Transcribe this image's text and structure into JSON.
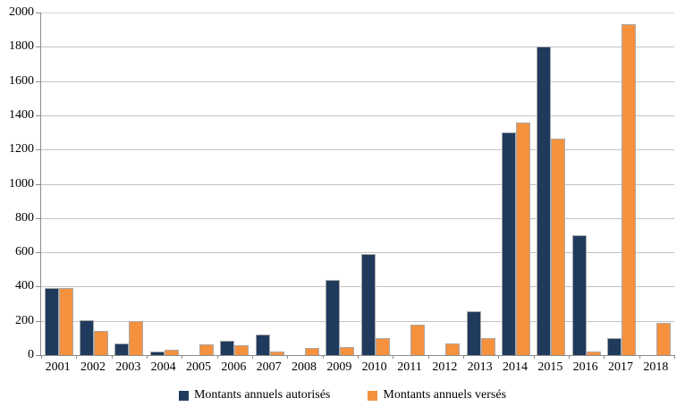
{
  "chart_data": {
    "type": "bar",
    "title": "",
    "xlabel": "",
    "ylabel": "",
    "categories": [
      "2001",
      "2002",
      "2003",
      "2004",
      "2005",
      "2006",
      "2007",
      "2008",
      "2009",
      "2010",
      "2011",
      "2012",
      "2013",
      "2014",
      "2015",
      "2016",
      "2017",
      "2018"
    ],
    "series": [
      {
        "name": "Montants annuels autorisés",
        "color": "#1f3a5c",
        "values": [
          390,
          205,
          70,
          20,
          0,
          85,
          120,
          0,
          440,
          590,
          0,
          0,
          255,
          1300,
          1800,
          700,
          100,
          0
        ]
      },
      {
        "name": "Montants annuels versés",
        "color": "#f6913e",
        "values": [
          390,
          140,
          200,
          30,
          65,
          60,
          20,
          40,
          45,
          100,
          180,
          70,
          100,
          1360,
          1265,
          20,
          1930,
          190
        ]
      }
    ],
    "ylim": [
      0,
      2000
    ],
    "ytick_step": 200,
    "ytick_labels": [
      "0",
      "200",
      "400",
      "600",
      "800",
      "1000",
      "1200",
      "1400",
      "1600",
      "1800",
      "2000"
    ],
    "grid": true,
    "legend_position": "bottom",
    "colors": {
      "gridline": "#c3c3c3",
      "axis": "#8c8c8c",
      "bar_border": "#a9a9a9",
      "background": "#ffffff"
    }
  }
}
